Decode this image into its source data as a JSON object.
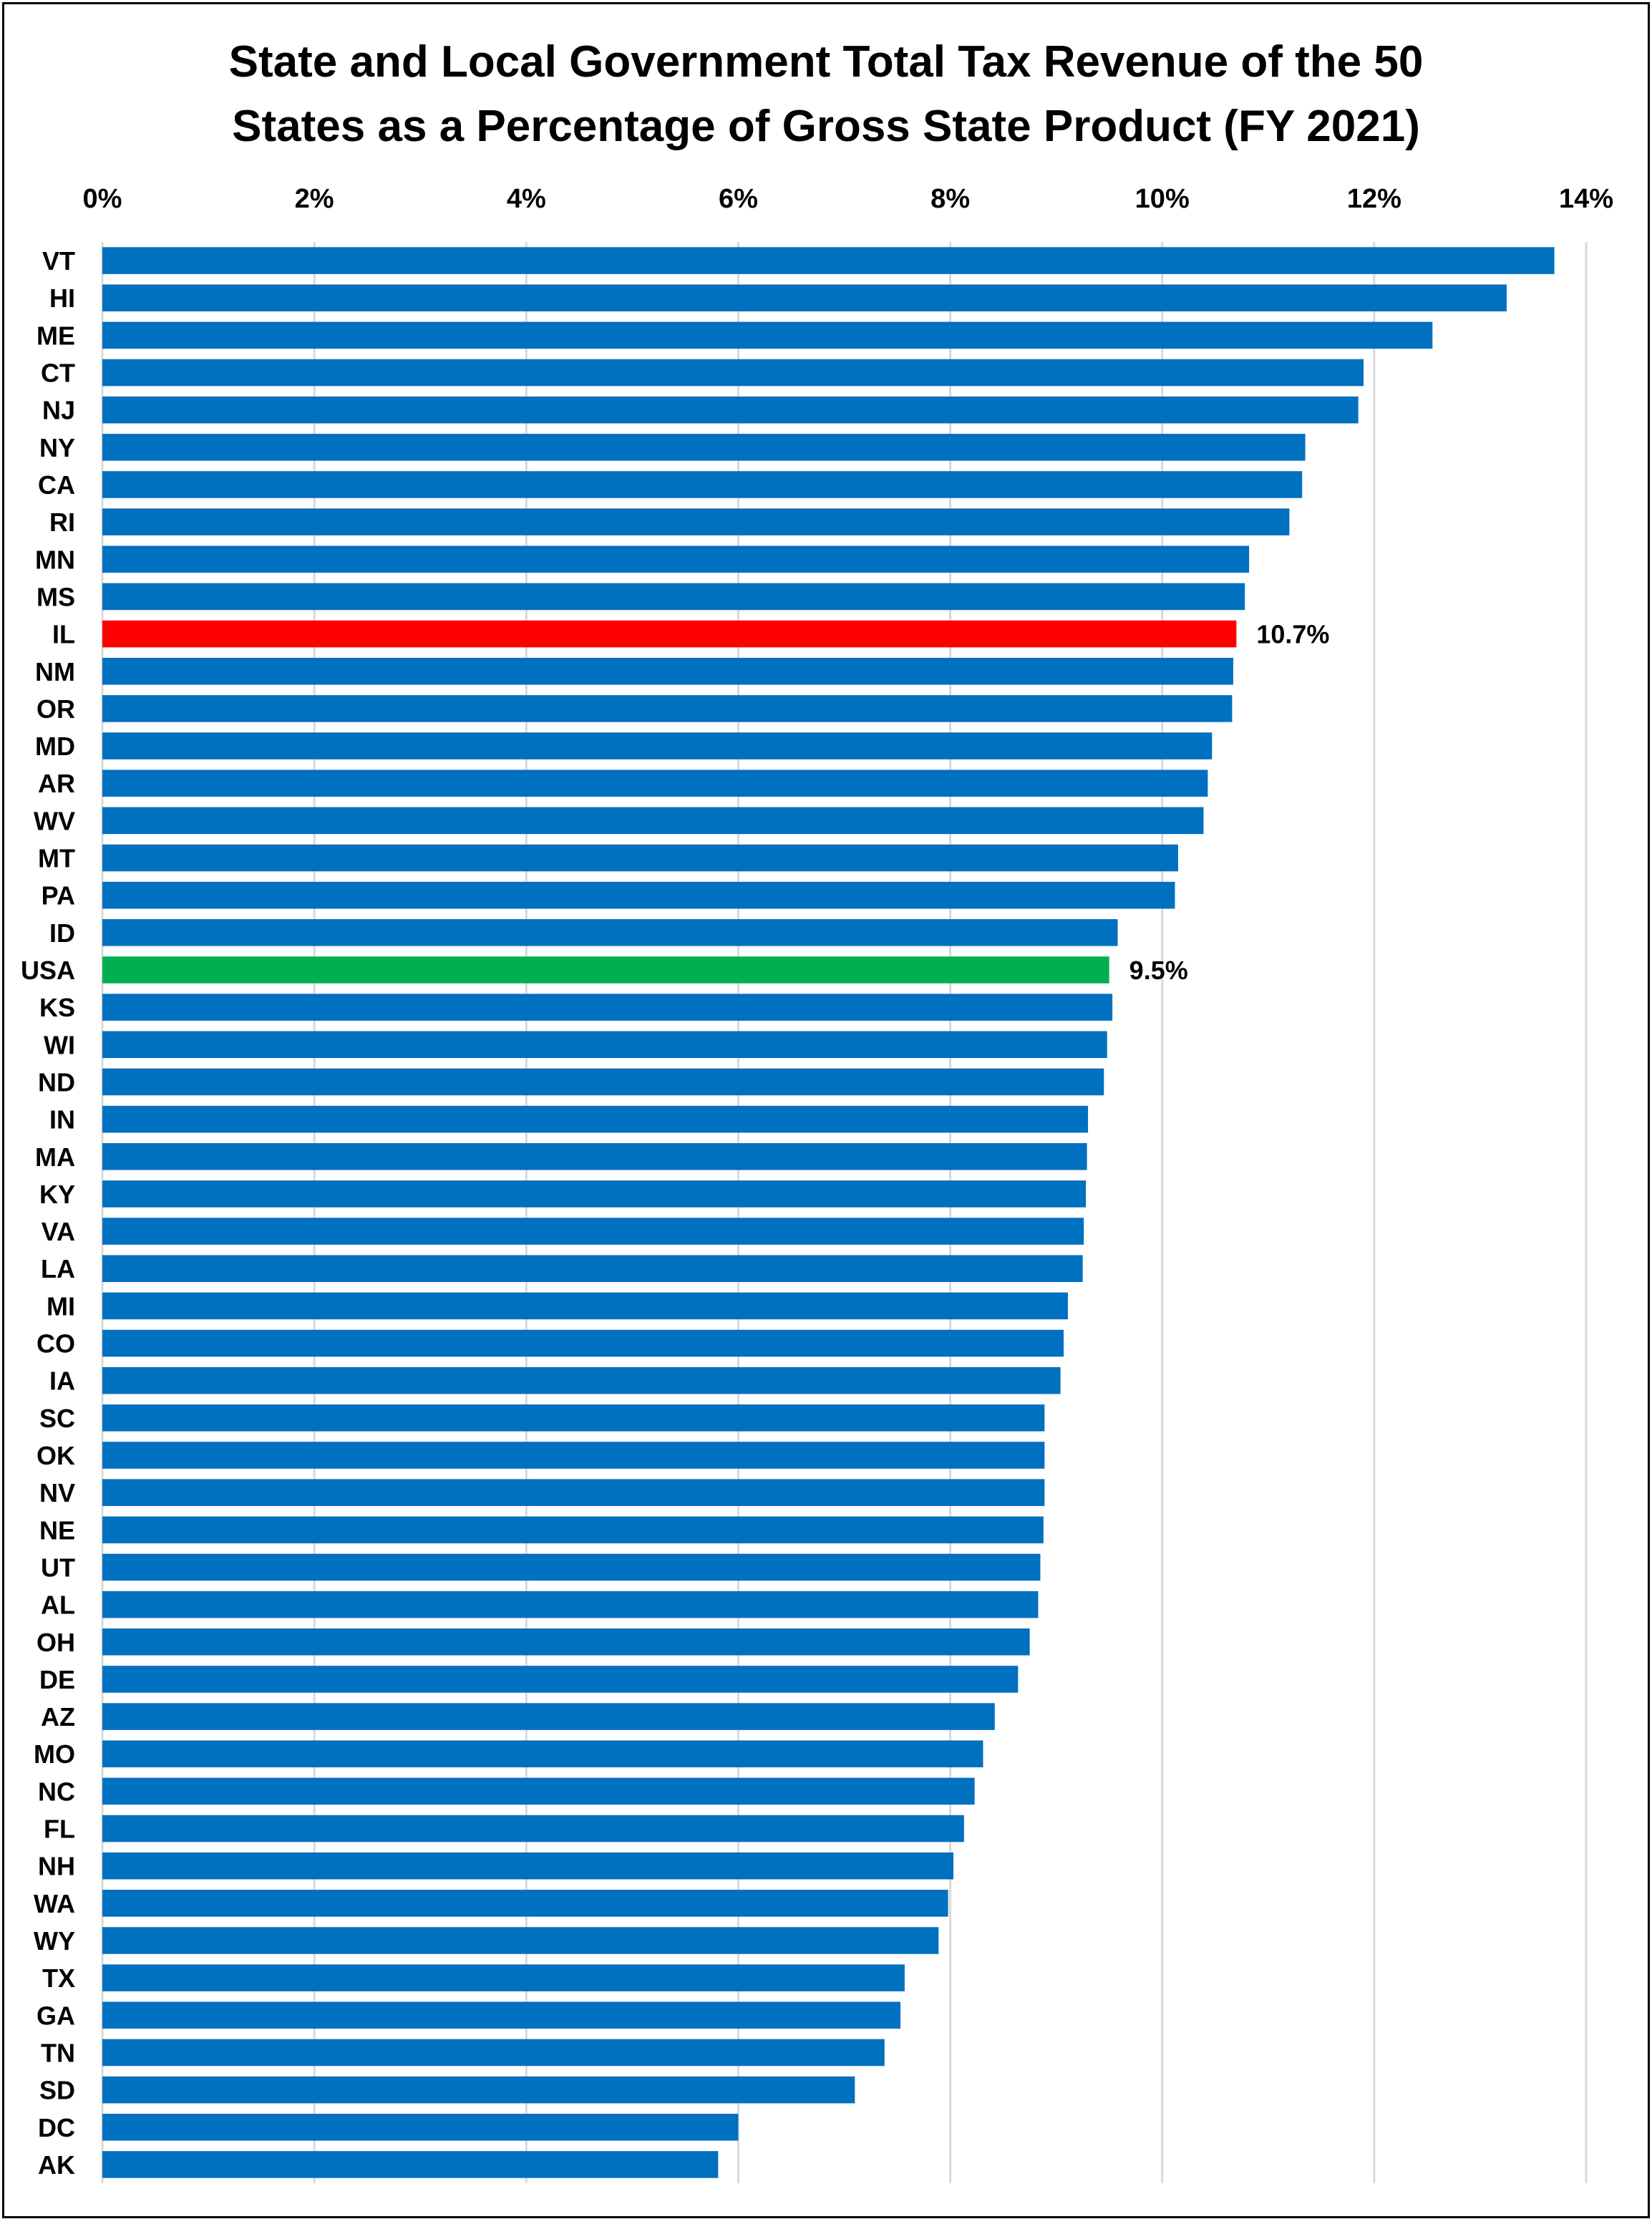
{
  "chart_data": {
    "type": "bar",
    "orientation": "horizontal",
    "title_line1": "State and Local Government Total Tax Revenue of the 50",
    "title_line2": "States as a Percentage of Gross State Product (FY 2021)",
    "xlim": [
      0,
      14
    ],
    "x_ticks": [
      "0%",
      "2%",
      "4%",
      "6%",
      "8%",
      "10%",
      "12%",
      "14%"
    ],
    "grid": "vertical",
    "categories": [
      "VT",
      "HI",
      "ME",
      "CT",
      "NJ",
      "NY",
      "CA",
      "RI",
      "MN",
      "MS",
      "IL",
      "NM",
      "OR",
      "MD",
      "AR",
      "WV",
      "MT",
      "PA",
      "ID",
      "USA",
      "KS",
      "WI",
      "ND",
      "IN",
      "MA",
      "KY",
      "VA",
      "LA",
      "MI",
      "CO",
      "IA",
      "SC",
      "OK",
      "NV",
      "NE",
      "UT",
      "AL",
      "OH",
      "DE",
      "AZ",
      "MO",
      "NC",
      "FL",
      "NH",
      "WA",
      "WY",
      "TX",
      "GA",
      "TN",
      "SD",
      "DC",
      "AK"
    ],
    "values": [
      13.7,
      13.25,
      12.55,
      11.9,
      11.85,
      11.35,
      11.32,
      11.2,
      10.82,
      10.78,
      10.7,
      10.67,
      10.66,
      10.47,
      10.43,
      10.39,
      10.15,
      10.12,
      9.58,
      9.5,
      9.53,
      9.48,
      9.45,
      9.3,
      9.29,
      9.28,
      9.26,
      9.25,
      9.11,
      9.07,
      9.04,
      8.89,
      8.89,
      8.89,
      8.88,
      8.85,
      8.83,
      8.75,
      8.64,
      8.42,
      8.31,
      8.23,
      8.13,
      8.03,
      7.98,
      7.89,
      7.57,
      7.53,
      7.38,
      7.1,
      6.0,
      5.81
    ],
    "colors": {
      "default": "#0070C0",
      "IL": "#FF0000",
      "USA": "#00B050"
    },
    "data_labels": [
      {
        "category": "IL",
        "text": "10.7%"
      },
      {
        "category": "USA",
        "text": "9.5%"
      }
    ]
  }
}
